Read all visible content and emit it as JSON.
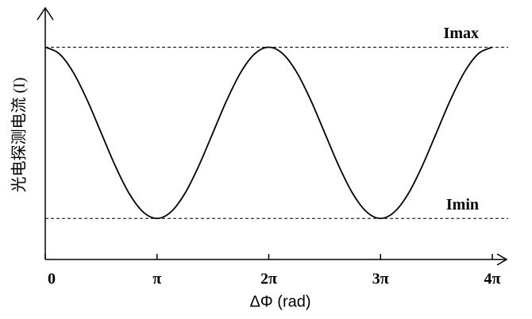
{
  "chart_data": {
    "type": "line",
    "x_label": "ΔΦ (rad)",
    "y_label": "光电探测电流 (I)",
    "x": [
      0,
      0.3927,
      0.7854,
      1.1781,
      1.5708,
      1.9635,
      2.3562,
      2.7489,
      3.1416,
      3.5343,
      3.927,
      4.3197,
      4.7124,
      5.1051,
      5.4978,
      5.8905,
      6.2832,
      6.6759,
      7.0686,
      7.4613,
      7.854,
      8.2467,
      8.6394,
      9.0321,
      9.4248,
      9.8175,
      10.2102,
      10.6029,
      10.9956,
      11.3883,
      11.781,
      12.1737,
      12.5664
    ],
    "values": [
      1,
      0.9619,
      0.8536,
      0.6913,
      0.5,
      0.3087,
      0.1464,
      0.0381,
      0,
      0.0381,
      0.1464,
      0.3087,
      0.5,
      0.6913,
      0.8536,
      0.9619,
      1,
      0.9619,
      0.8536,
      0.6913,
      0.5,
      0.3087,
      0.1464,
      0.0381,
      0,
      0.0381,
      0.1464,
      0.3087,
      0.5,
      0.6913,
      0.8536,
      0.9619,
      1
    ],
    "color": "#000000",
    "xlim": [
      0,
      12.5664
    ],
    "ylim": [
      -0.24,
      1.22
    ],
    "xticks": [
      0,
      {
        "value": 3.1416,
        "label": "π"
      },
      {
        "value": 6.2832,
        "label": "2π"
      },
      {
        "value": 9.4248,
        "label": "3π"
      },
      {
        "value": 12.5664,
        "label": "4π"
      }
    ],
    "annotations": [
      {
        "text": "Imax",
        "value": 1
      },
      {
        "text": "Imin",
        "value": 0
      }
    ]
  }
}
